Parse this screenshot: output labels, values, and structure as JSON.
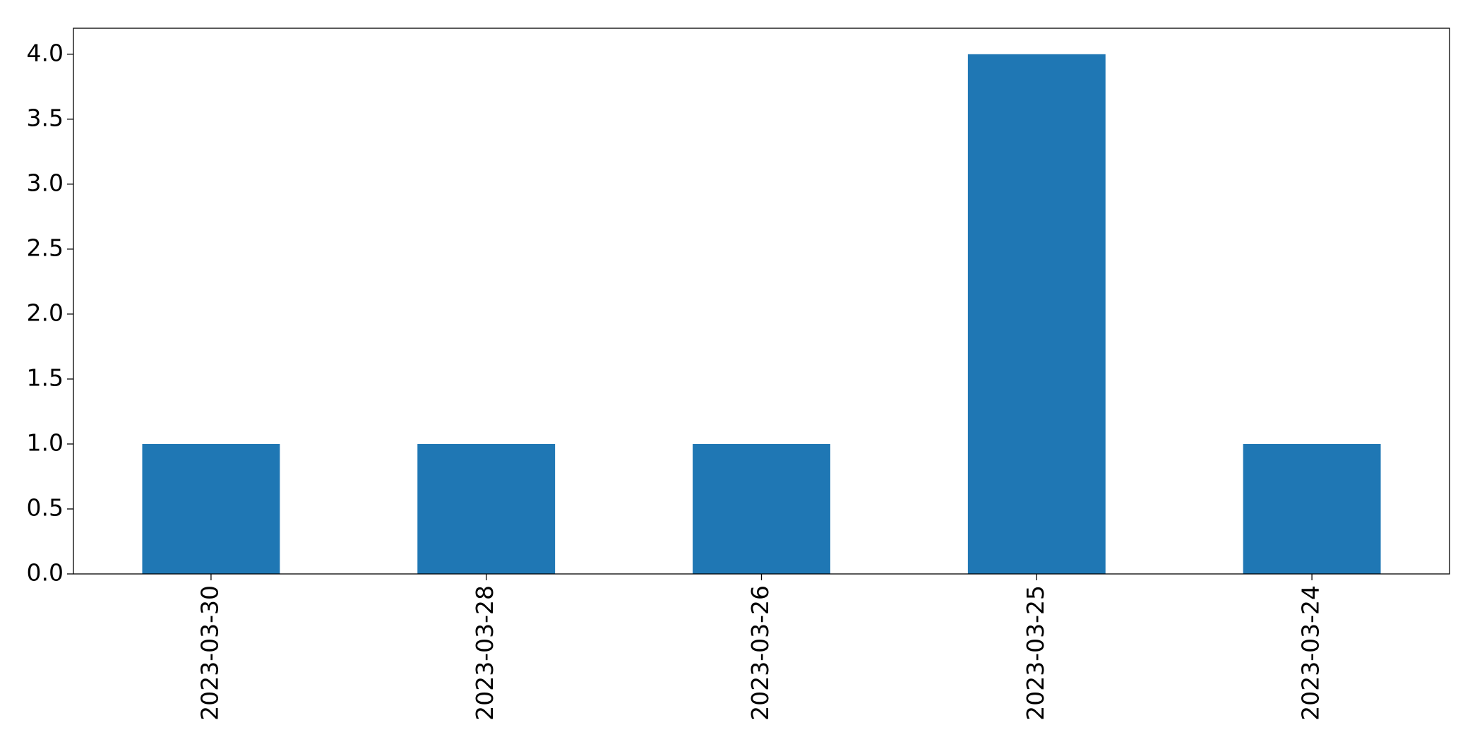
{
  "chart_data": {
    "type": "bar",
    "categories": [
      "2023-03-30",
      "2023-03-28",
      "2023-03-26",
      "2023-03-25",
      "2023-03-24"
    ],
    "values": [
      1,
      1,
      1,
      4,
      1
    ],
    "color": "#1f77b4",
    "ylim": [
      0,
      4.2
    ],
    "yticks": [
      {
        "value": 0,
        "label": "0.0"
      },
      0.5,
      {
        "value": 1,
        "label": "1.0"
      },
      1.5,
      {
        "value": 2,
        "label": "2.0"
      },
      2.5,
      {
        "value": 3,
        "label": "3.0"
      },
      3.5,
      {
        "value": 4,
        "label": "4.0"
      }
    ],
    "grid": false
  }
}
